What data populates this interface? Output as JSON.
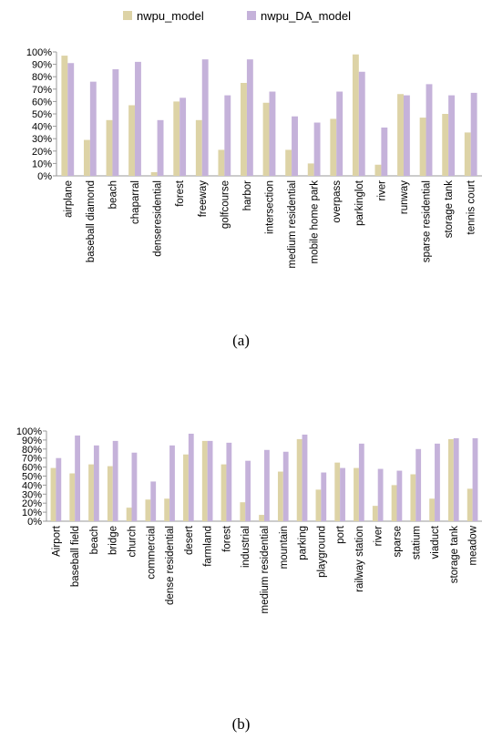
{
  "colors": {
    "nwpu_model": "#ddd3a6",
    "nwpu_DA_model": "#c5b2da",
    "axis": "#999999",
    "text": "#000000"
  },
  "captions": {
    "a": "(a)",
    "b": "(b)"
  },
  "chart_data": [
    {
      "type": "bar",
      "legend_position": "top",
      "ylim": [
        0,
        100
      ],
      "yticks": [
        "0%",
        "10%",
        "20%",
        "30%",
        "40%",
        "50%",
        "60%",
        "70%",
        "80%",
        "90%",
        "100%"
      ],
      "categories": [
        "airplane",
        "baseball diamond",
        "beach",
        "chaparral",
        "denseresidential",
        "forest",
        "freeway",
        "golfcourse",
        "harbor",
        "intersection",
        "medium residential",
        "mobile home park",
        "overpass",
        "parkinglot",
        "river",
        "runway",
        "sparse residential",
        "storage tank",
        "tennis court"
      ],
      "series": [
        {
          "name": "nwpu_model",
          "values": [
            97,
            29,
            45,
            57,
            3,
            60,
            45,
            21,
            75,
            59,
            21,
            10,
            46,
            98,
            9,
            66,
            47,
            50,
            35
          ]
        },
        {
          "name": "nwpu_DA_model",
          "values": [
            91,
            76,
            86,
            92,
            45,
            63,
            94,
            65,
            94,
            68,
            48,
            43,
            68,
            84,
            39,
            65,
            74,
            65,
            67
          ]
        }
      ]
    },
    {
      "type": "bar",
      "legend_position": "top",
      "ylim": [
        0,
        100
      ],
      "yticks": [
        "0%",
        "10%",
        "20%",
        "30%",
        "40%",
        "50%",
        "60%",
        "70%",
        "80%",
        "90%",
        "100%"
      ],
      "categories": [
        "Airport",
        "baseball field",
        "beach",
        "bridge",
        "church",
        "commercial",
        "dense residential",
        "desert",
        "farmland",
        "forest",
        "industrial",
        "medium residential",
        "mountain",
        "parking",
        "playground",
        "port",
        "railway station",
        "river",
        "sparse",
        "statium",
        "viaduct",
        "storage tank",
        "meadow"
      ],
      "series": [
        {
          "name": "nwpu_model",
          "values": [
            59,
            53,
            63,
            61,
            15,
            24,
            25,
            74,
            89,
            63,
            21,
            7,
            55,
            91,
            35,
            65,
            59,
            17,
            40,
            52,
            25,
            91,
            36
          ]
        },
        {
          "name": "nwpu_DA_model",
          "values": [
            70,
            95,
            84,
            89,
            76,
            44,
            84,
            97,
            89,
            87,
            67,
            79,
            77,
            96,
            54,
            59,
            86,
            58,
            56,
            80,
            86,
            92,
            92
          ]
        }
      ]
    }
  ]
}
